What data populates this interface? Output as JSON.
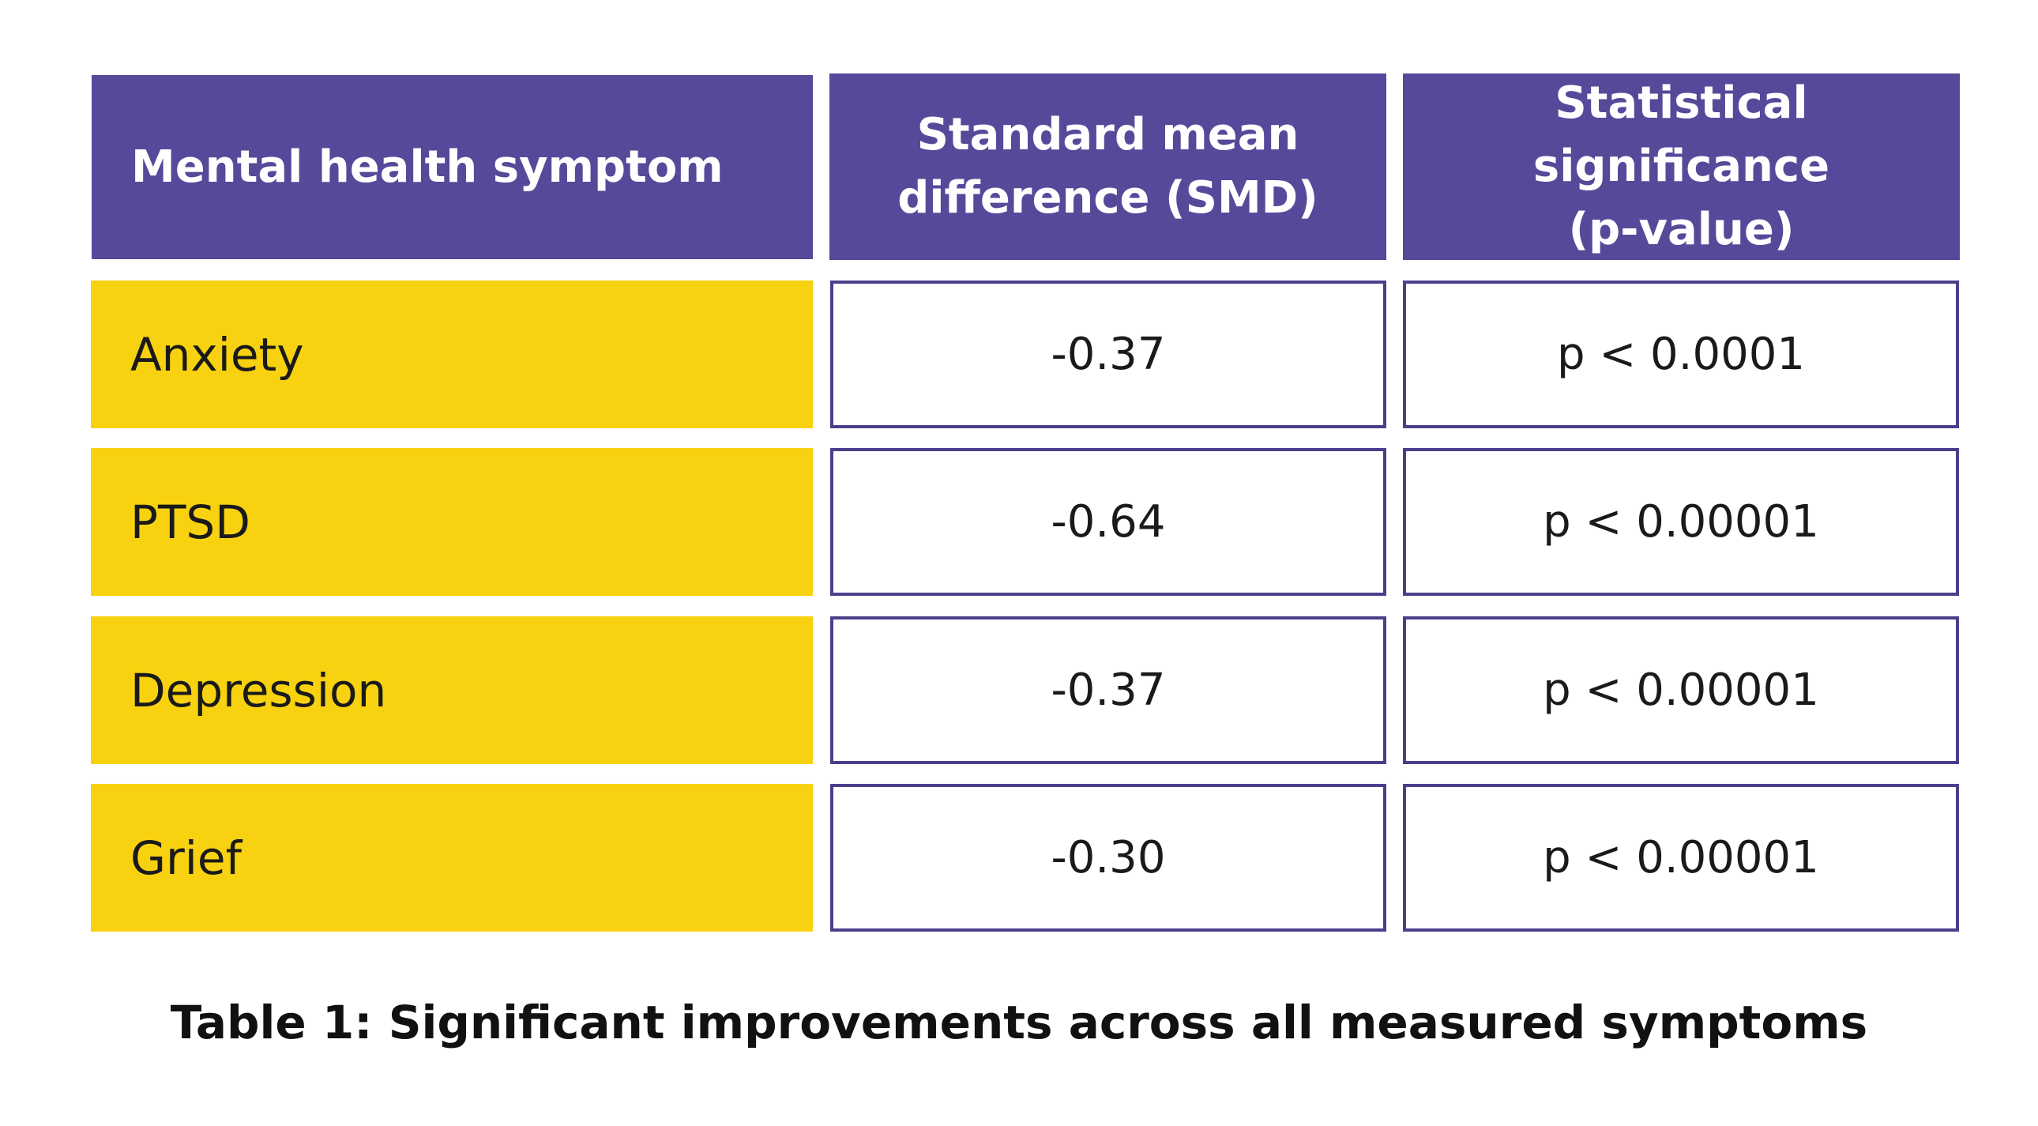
{
  "table": {
    "headers": [
      "Mental health symptom",
      "Standard mean\ndifference (SMD)",
      "Statistical significance\n(p-value)"
    ],
    "rows": [
      {
        "symptom": "Anxiety",
        "smd": "-0.37",
        "p": "p < 0.0001"
      },
      {
        "symptom": "PTSD",
        "smd": "-0.64",
        "p": "p < 0.00001"
      },
      {
        "symptom": "Depression",
        "smd": "-0.37",
        "p": "p < 0.00001"
      },
      {
        "symptom": "Grief",
        "smd": "-0.30",
        "p": "p < 0.00001"
      }
    ]
  },
  "caption": "Table 1: Significant improvements across all measured symptoms",
  "colors": {
    "header_bg": "#554a9a",
    "symptom_bg": "#f8d210",
    "border": "#4b3f8c"
  }
}
